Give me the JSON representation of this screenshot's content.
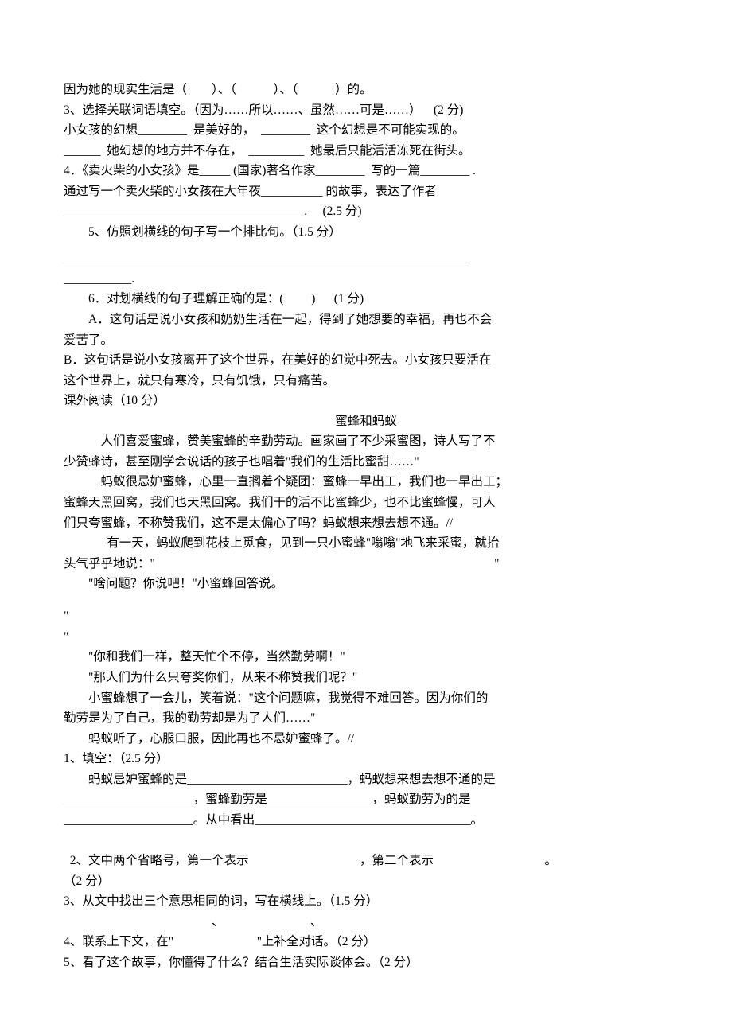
{
  "p1": {
    "l1a": "因为她的现实生活是（        ）、（            ）、（            ）的。",
    "l2a": "3、选择关联词语填空。（因为……所以……、虽然……可是……）    (2 分)",
    "l3a": "小女孩的幻想________  是美好的，  ________  这个幻想是不可能实现的。",
    "l4a": "______  她幻想的地方并不存在，  _________  她最后只能活活冻死在街头。",
    "l5a": "4．《卖火柴的小女孩》是_____ (国家)著名作家________  写的一篇________ .",
    "l6a": "通过写一个卖火柴的小女孩在大年夜__________ 的故事，表达了作者",
    "l7a": "_______________________________________.     (2.5 分)",
    "q5": "5、仿照划横线的句子写一个排比句。（1.5 分）",
    "rule1": "__________________________________________________________________",
    "rule1b": "___________.",
    "q6": "6．对划横线的句子理解正确的是：(         )      (1 分)",
    "qa": "A．这句话是说小女孩和奶奶生活在一起，得到了她想要的幸福，再也不会",
    "qa2": "爱苦了。",
    "qb": "B．这句话是说小女孩离开了这个世界，在美好的幻觉中死去。小女孩只要活在",
    "qb2": "这个世界上，就只有寒冷，只有饥饿，只有痛苦。",
    "kwyd": "课外阅读（10 分）",
    "title2": "蜜蜂和蚂蚁",
    "s1": "人们喜爱蜜蜂，赞美蜜蜂的辛勤劳动。画家画了不少采蜜图，诗人写了不",
    "s1b": "少赞蜂诗，甚至刚学会说话的孩子也唱着\"我们的生活比蜜甜……\"",
    "s2": "蚂蚁很忌妒蜜蜂，心里一直搁着个疑团：蜜蜂一早出工，我们也一早出工；",
    "s2b": "蜜蜂天黑回窝，我们也天黑回窝。我们干的活不比蜜蜂少，也不比蜜蜂慢，可人",
    "s2c": "们只夸蜜蜂，不称赞我们，这不是太偏心了吗？蚂蚁想来想去想不通。//",
    "s3": "有一天，蚂蚁爬到花枝上觅食，见到一只小蜜蜂\"嗡嗡\"地飞来采蜜，就抬",
    "s3b": "头气乎乎地说：\"                                                                                                              \"",
    "s4": "\"啥问题？你说吧！\"小蜜蜂回答说。",
    "quoteL": "\"",
    "quoteR": "\"",
    "s5": "\"你和我们一样，整天忙个不停，当然勤劳啊！\"",
    "s6": "\"那人们为什么只夸奖你们，从来不称赞我们呢？\"",
    "s7": "小蜜蜂想了一会儿，笑着说：\"这个问题嘛，我觉得不难回答。因为你们的",
    "s7b": "勤劳是为了自己，我的勤劳却是为了人们……\"",
    "s8": "蚂蚁听了，心服口服，因此再也不忌妒蜜蜂了。//",
    "q21": "1、填空：（2.5 分）",
    "q21a": "蚂蚁忌妒蜜蜂的是__________________________，蚂蚁想来想去想不通的是",
    "q21b": "_____________________，蜜蜂勤劳是_________________，蚂蚁勤劳为的是",
    "q21c": "_____________________。从中看出___________________________________。",
    "q22a": "2、文中两个省略号，第一个表示",
    "q22b": "，第二个表示",
    "q22c": "。",
    "q22d": "（2 分）",
    "q23": "3、从文中找出三个意思相同的词，写在横线上。（1.5 分）",
    "q23b": "                                                、                            、",
    "q24": "4、联系上下文，在\"                           \"上补全对话。（2 分）",
    "q25": "5、看了这个故事，你懂得了什么？结合生活实际谈体会。（2 分）"
  }
}
